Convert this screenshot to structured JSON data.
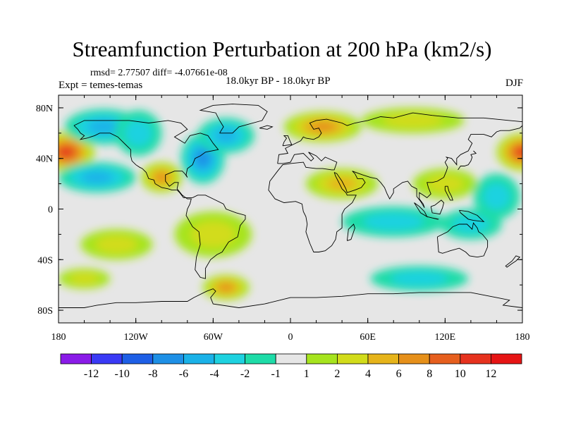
{
  "chart_data": {
    "type": "heatmap",
    "title": "Streamfunction Perturbation at 200 hPa (km2/s)",
    "stats_label": "rmsd= 2.77507 diff= -4.07661e-08",
    "experiment_label": "Expt = temes-temas",
    "period_label": "18.0kyr BP - 18.0kyr BP",
    "season_label": "DJF",
    "x_range": [
      -180,
      180
    ],
    "y_range": [
      -90,
      90
    ],
    "x_ticks": [
      {
        "value": -180,
        "label": "180"
      },
      {
        "value": -120,
        "label": "120W"
      },
      {
        "value": -60,
        "label": "60W"
      },
      {
        "value": 0,
        "label": "0"
      },
      {
        "value": 60,
        "label": "60E"
      },
      {
        "value": 120,
        "label": "120E"
      },
      {
        "value": 180,
        "label": "180"
      }
    ],
    "y_ticks": [
      {
        "value": 80,
        "label": "80N"
      },
      {
        "value": 40,
        "label": "40N"
      },
      {
        "value": 0,
        "label": "0"
      },
      {
        "value": -40,
        "label": "40S"
      },
      {
        "value": -80,
        "label": "80S"
      }
    ],
    "colorbar": {
      "labels": [
        "-12",
        "-10",
        "-8",
        "-6",
        "-4",
        "-2",
        "-1",
        "1",
        "2",
        "4",
        "6",
        "8",
        "10",
        "12"
      ],
      "colors": [
        "#8a1be8",
        "#3a3af5",
        "#1e5fe6",
        "#1e90e6",
        "#1ab2e8",
        "#1ed2e0",
        "#1edca8",
        "#e6e6e6",
        "#a6e41e",
        "#d2dc1a",
        "#e6b41a",
        "#e6901a",
        "#e65f1e",
        "#e6321e",
        "#e61414"
      ]
    },
    "anomalies": [
      {
        "lon": -174,
        "lat": 45,
        "value": 11,
        "a": 22,
        "b": 16
      },
      {
        "lon": 180,
        "lat": 45,
        "value": 10,
        "a": 20,
        "b": 15
      },
      {
        "lon": -150,
        "lat": 25,
        "value": -5,
        "a": 30,
        "b": 12
      },
      {
        "lon": -145,
        "lat": 65,
        "value": -4,
        "a": 30,
        "b": 14
      },
      {
        "lon": -118,
        "lat": 60,
        "value": -3,
        "a": 18,
        "b": 18
      },
      {
        "lon": -100,
        "lat": 25,
        "value": 7,
        "a": 16,
        "b": 12
      },
      {
        "lon": -68,
        "lat": 40,
        "value": -7,
        "a": 17,
        "b": 20
      },
      {
        "lon": -50,
        "lat": 58,
        "value": -4,
        "a": 22,
        "b": 14
      },
      {
        "lon": 25,
        "lat": 65,
        "value": 7,
        "a": 30,
        "b": 12
      },
      {
        "lon": 95,
        "lat": 70,
        "value": 2,
        "a": 40,
        "b": 10
      },
      {
        "lon": 40,
        "lat": 20,
        "value": 4,
        "a": 28,
        "b": 12
      },
      {
        "lon": 120,
        "lat": 20,
        "value": 3,
        "a": 25,
        "b": 12
      },
      {
        "lon": 160,
        "lat": 10,
        "value": -2,
        "a": 18,
        "b": 18
      },
      {
        "lon": 80,
        "lat": -10,
        "value": -3,
        "a": 40,
        "b": 12
      },
      {
        "lon": 140,
        "lat": -12,
        "value": -3,
        "a": 24,
        "b": 12
      },
      {
        "lon": -60,
        "lat": -20,
        "value": 3,
        "a": 30,
        "b": 18
      },
      {
        "lon": -135,
        "lat": -28,
        "value": 2,
        "a": 28,
        "b": 12
      },
      {
        "lon": -50,
        "lat": -62,
        "value": 6,
        "a": 18,
        "b": 10
      },
      {
        "lon": 100,
        "lat": -55,
        "value": -2,
        "a": 38,
        "b": 10
      },
      {
        "lon": -160,
        "lat": -55,
        "value": 2,
        "a": 20,
        "b": 8
      }
    ]
  }
}
